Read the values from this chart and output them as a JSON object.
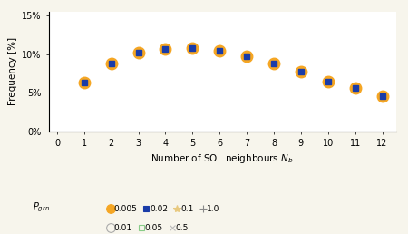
{
  "x": [
    1,
    2,
    3,
    4,
    5,
    6,
    7,
    8,
    9,
    10,
    11,
    12
  ],
  "y": [
    0.0635,
    0.088,
    0.1015,
    0.1065,
    0.1075,
    0.1045,
    0.0975,
    0.088,
    0.077,
    0.0645,
    0.0555,
    0.0455
  ],
  "xlim": [
    -0.3,
    12.5
  ],
  "ylim": [
    0,
    0.155
  ],
  "xlabel": "Number of SOL neighbours $N_b$",
  "ylabel": "Frequency [%]",
  "yticks": [
    0.0,
    0.05,
    0.1,
    0.15
  ],
  "ytick_labels": [
    "0%",
    "5%",
    "10%",
    "15%"
  ],
  "xticks": [
    0,
    1,
    2,
    3,
    4,
    5,
    6,
    7,
    8,
    9,
    10,
    11,
    12
  ],
  "outer_marker_color": "#F5A623",
  "inner_marker_color": "#1a3ca8",
  "outer_marker_size": 9,
  "inner_marker_size": 5,
  "bg_color": "#f7f5ec",
  "axis_bg_color": "#ffffff",
  "legend_row1": [
    {
      "label": "0.005",
      "marker": "o",
      "color": "#F5A623",
      "markersize": 7,
      "filled": true
    },
    {
      "label": "0.02",
      "marker": "s",
      "color": "#1a3ca8",
      "markersize": 5,
      "filled": true
    },
    {
      "label": "0.1",
      "marker": "*",
      "color": "#e8c97e",
      "markersize": 6,
      "filled": true
    },
    {
      "label": "1.0",
      "marker": "+",
      "color": "#888888",
      "markersize": 6,
      "filled": true
    }
  ],
  "legend_row2": [
    {
      "label": "0.01",
      "marker": "o",
      "color": "#aaaaaa",
      "markersize": 7,
      "filled": false
    },
    {
      "label": "0.05",
      "marker": "s",
      "color": "#88cc88",
      "markersize": 5,
      "filled": false
    },
    {
      "label": "0.5",
      "marker": "x",
      "color": "#bbbbbb",
      "markersize": 5,
      "filled": true
    }
  ],
  "pgrn_label": "$P_{grn}$",
  "xlabel_fontsize": 7.5,
  "ylabel_fontsize": 7.5,
  "tick_fontsize": 7,
  "legend_fontsize": 6.5
}
